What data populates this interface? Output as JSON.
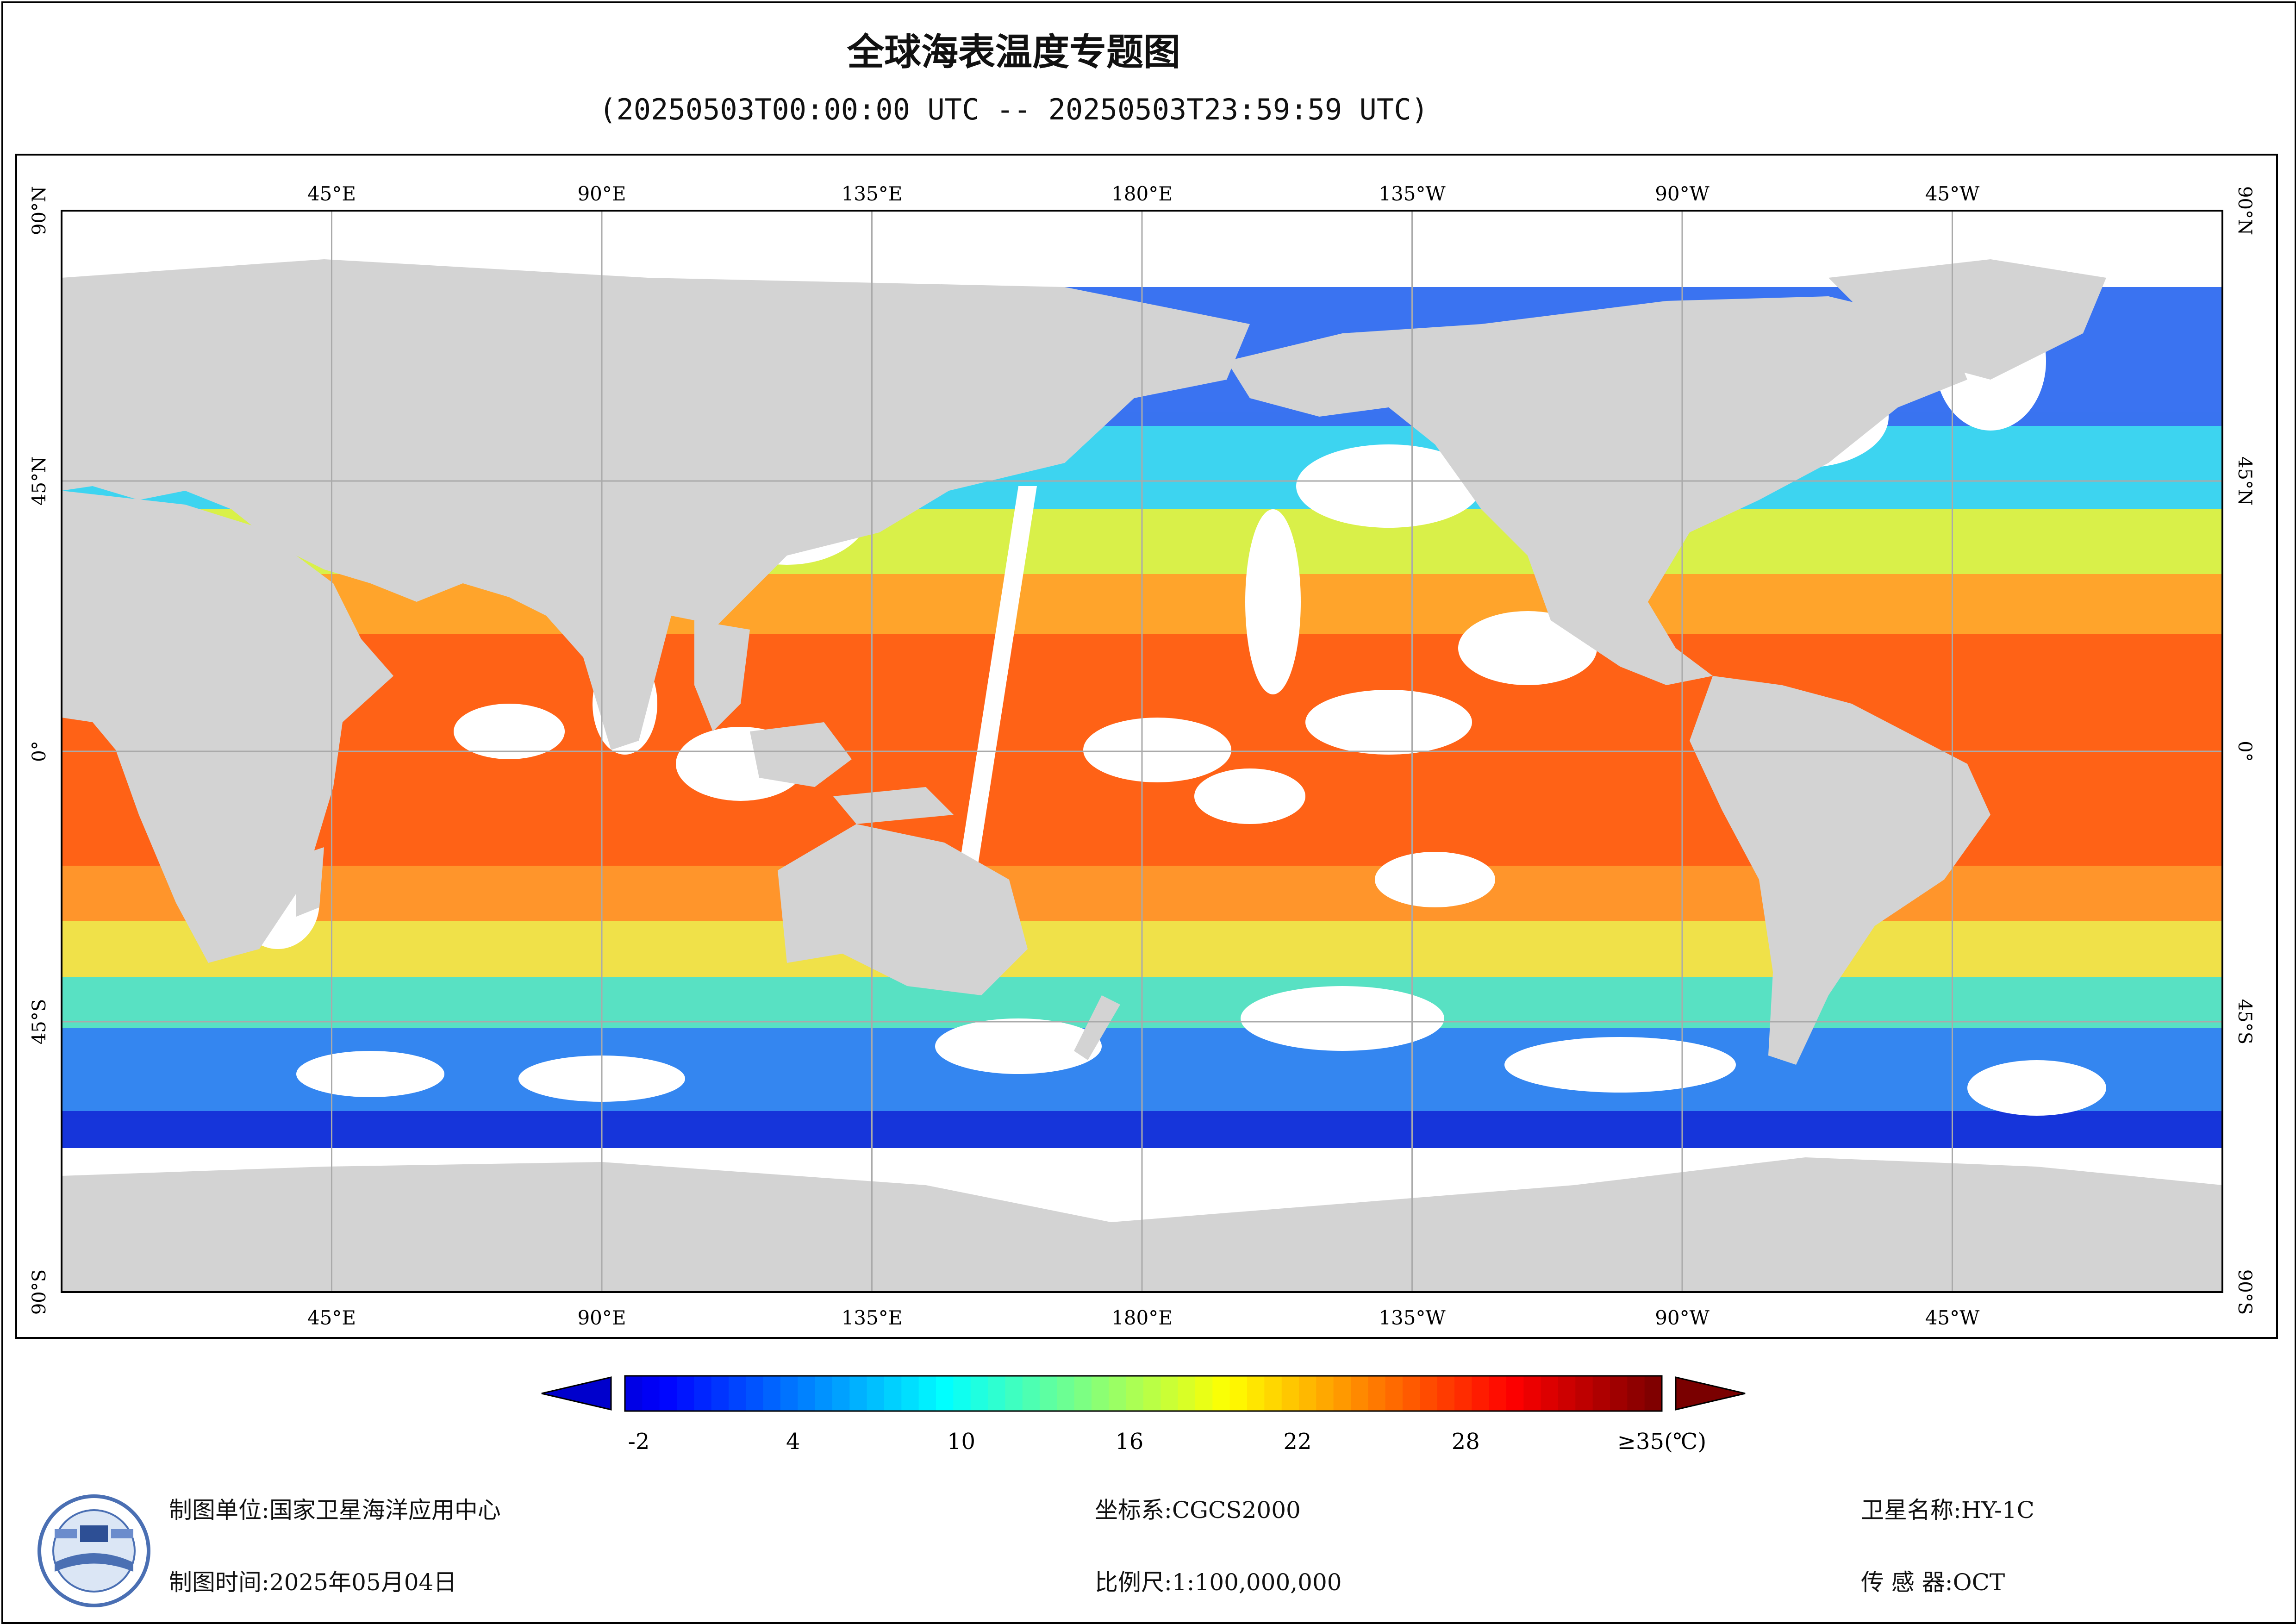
{
  "title": "全球海表温度专题图",
  "subtitle": "(20250503T00:00:00 UTC -- 20250503T23:59:59 UTC)",
  "map": {
    "lon_range": [
      0,
      360
    ],
    "lat_range": [
      -90,
      90
    ],
    "top_lon_labels": [
      "45°E",
      "90°E",
      "135°E",
      "180°E",
      "135°W",
      "90°W",
      "45°W"
    ],
    "bottom_lon_labels": [
      "45°E",
      "90°E",
      "135°E",
      "180°E",
      "135°W",
      "90°W",
      "45°W"
    ],
    "lat_labels": [
      "90°N",
      "45°N",
      "0°",
      "45°S",
      "90°S"
    ],
    "colors": {
      "land": "#d3d3d3",
      "no_data": "#ffffff",
      "grid": "#aaaaaa"
    }
  },
  "colorbar": {
    "tick_labels": [
      "-2",
      "4",
      "10",
      "16",
      "22",
      "28",
      "≥35(℃)"
    ],
    "tick_values": [
      -2,
      4,
      10,
      16,
      22,
      28,
      35
    ],
    "range": [
      -2,
      35
    ],
    "under_color": "#0000cc",
    "over_color": "#7a0000"
  },
  "footer": {
    "unit_label": "制图单位:",
    "unit_value": "国家卫星海洋应用中心",
    "time_label": "制图时间:",
    "time_value": "2025年05月04日",
    "crs_label": "坐标系:",
    "crs_value": "CGCS2000",
    "scale_label": "比例尺:",
    "scale_value": "1:100,000,000",
    "satellite_label": "卫星名称:",
    "satellite_value": "HY-1C",
    "sensor_label": "传 感 器:",
    "sensor_value": "OCT"
  },
  "logo": {
    "icon": "satellite-ocean-logo"
  }
}
